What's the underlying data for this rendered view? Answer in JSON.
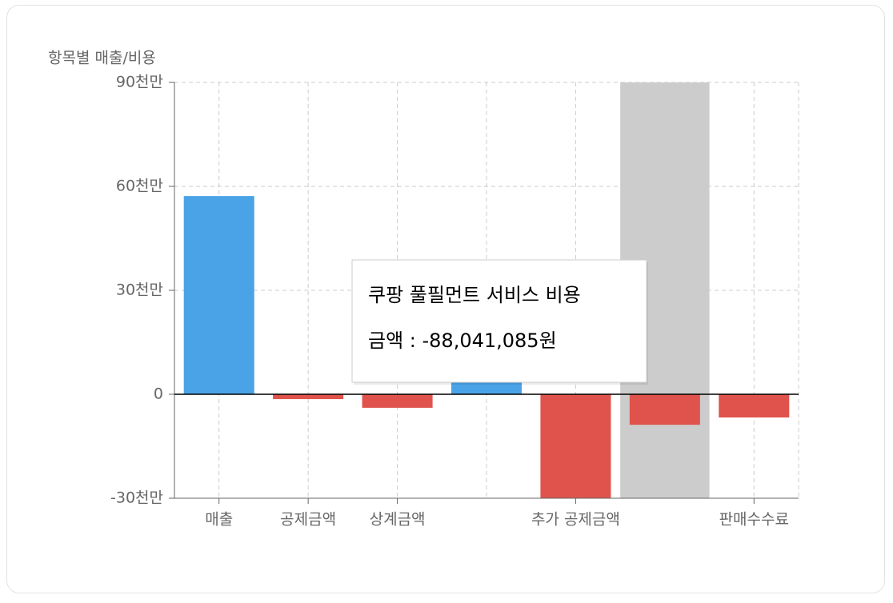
{
  "chart_data": {
    "type": "bar",
    "y_axis_title": "항목별 매출/비용",
    "categories": [
      "매출",
      "공제금액",
      "상계금액",
      null,
      "추가 공제금액",
      null,
      "판매수수료"
    ],
    "values": [
      572000000,
      -14000000,
      -39000000,
      35000000,
      -300000000,
      -88041085,
      -67000000
    ],
    "color_positive": "#4aa3e6",
    "color_negative": "#e0534c",
    "ylim": [
      -300000000,
      900000000
    ],
    "yticks": [
      {
        "value": -300000000,
        "label": "-30천만"
      },
      0,
      {
        "value": 300000000,
        "label": "30천만"
      },
      {
        "value": 600000000,
        "label": "60천만"
      },
      {
        "value": 900000000,
        "label": "90천만"
      }
    ],
    "grid": true,
    "highlight_index": 5,
    "highlight_color": "#cccccc",
    "tooltip": {
      "title": "쿠팡 풀필먼트 서비스 비용",
      "label": "금액 : -88,041,085원"
    }
  }
}
